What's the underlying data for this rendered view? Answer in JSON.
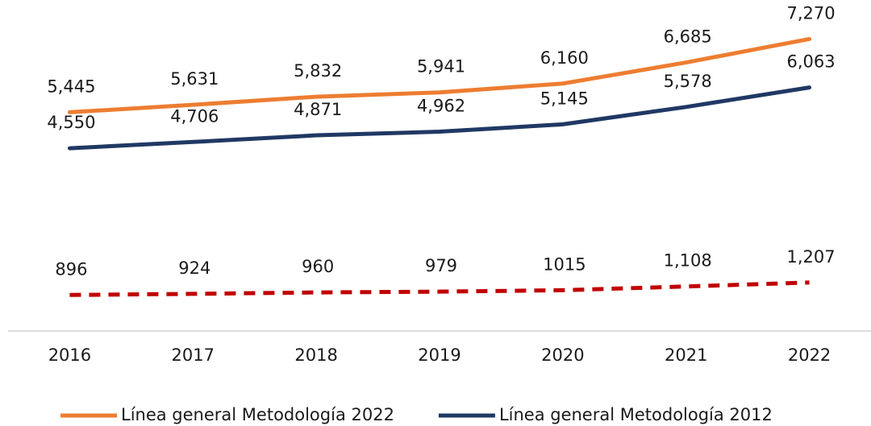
{
  "chart_data": {
    "type": "line",
    "categories": [
      "2016",
      "2017",
      "2018",
      "2019",
      "2020",
      "2021",
      "2022"
    ],
    "ylim": [
      0,
      8000
    ],
    "series": [
      {
        "name": "Línea general Metodología 2022",
        "color": "#ED7D31",
        "style": "solid",
        "values": [
          5445,
          5631,
          5832,
          5941,
          6160,
          6685,
          7270
        ],
        "value_labels": [
          "5,445",
          "5,631",
          "5,832",
          "5,941",
          "6,160",
          "6,685",
          "7,270"
        ]
      },
      {
        "name": "Línea general Metodología 2012",
        "color": "#203864",
        "style": "solid",
        "values": [
          4550,
          4706,
          4871,
          4962,
          5145,
          5578,
          6063
        ],
        "value_labels": [
          "4,550",
          "4,706",
          "4,871",
          "4,962",
          "5,145",
          "5,578",
          "6,063"
        ]
      },
      {
        "color": "#C00000",
        "style": "dashed",
        "values": [
          896,
          924,
          960,
          979,
          1015,
          1108,
          1207
        ],
        "value_labels": [
          "896",
          "924",
          "960",
          "979",
          "1015",
          "1,108",
          "1,207"
        ]
      }
    ]
  }
}
